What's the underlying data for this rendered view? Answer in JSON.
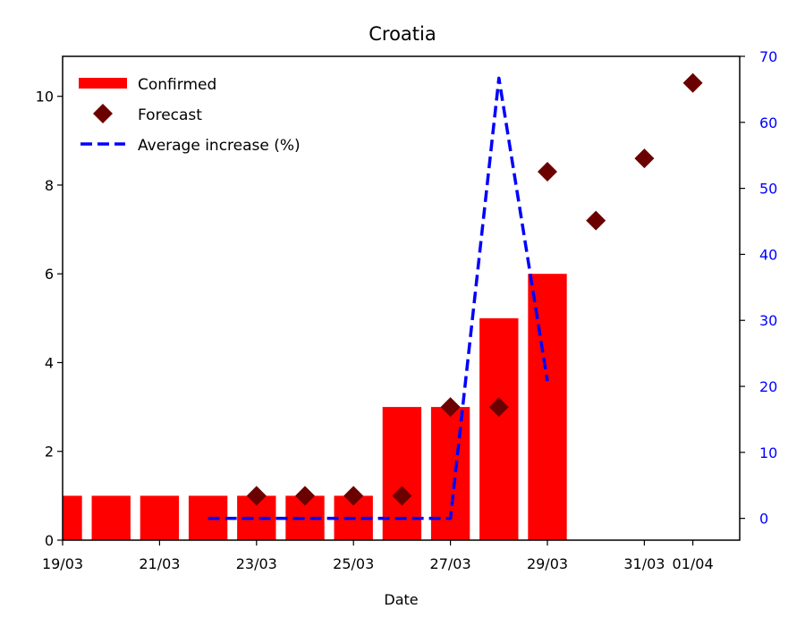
{
  "chart_data": {
    "type": "bar",
    "title": "Croatia",
    "xlabel": "Date",
    "ylabel": "",
    "ylabel_right": "",
    "x_categories": [
      "19/03",
      "20/03",
      "21/03",
      "22/03",
      "23/03",
      "24/03",
      "25/03",
      "26/03",
      "27/03",
      "28/03",
      "29/03",
      "30/03",
      "31/03",
      "01/04"
    ],
    "x_tick_labels": [
      "19/03",
      "21/03",
      "23/03",
      "25/03",
      "27/03",
      "29/03",
      "31/03",
      "01/04"
    ],
    "ylim_left": [
      0,
      10.9
    ],
    "y_ticks_left": [
      "0",
      "2",
      "4",
      "6",
      "8",
      "10"
    ],
    "ylim_right": [
      -3.3,
      70
    ],
    "y_ticks_right": [
      "0",
      "10",
      "20",
      "30",
      "40",
      "50",
      "60",
      "70"
    ],
    "legend_position": "top-left",
    "series": [
      {
        "name": "Confirmed",
        "kind": "bar",
        "color": "#ff0000",
        "axis": "left",
        "points": [
          {
            "x": "19/03",
            "y": 1
          },
          {
            "x": "20/03",
            "y": 1
          },
          {
            "x": "21/03",
            "y": 1
          },
          {
            "x": "22/03",
            "y": 1
          },
          {
            "x": "23/03",
            "y": 1
          },
          {
            "x": "24/03",
            "y": 1
          },
          {
            "x": "25/03",
            "y": 1
          },
          {
            "x": "26/03",
            "y": 3
          },
          {
            "x": "27/03",
            "y": 3
          },
          {
            "x": "28/03",
            "y": 5
          },
          {
            "x": "29/03",
            "y": 6
          }
        ]
      },
      {
        "name": "Forecast",
        "kind": "scatter",
        "marker": "diamond",
        "color": "#6b0000",
        "axis": "left",
        "points": [
          {
            "x": "23/03",
            "y": 1.0
          },
          {
            "x": "24/03",
            "y": 1.0
          },
          {
            "x": "25/03",
            "y": 1.0
          },
          {
            "x": "26/03",
            "y": 1.0
          },
          {
            "x": "27/03",
            "y": 3.0
          },
          {
            "x": "28/03",
            "y": 3.0
          },
          {
            "x": "29/03",
            "y": 8.3
          },
          {
            "x": "30/03",
            "y": 7.2
          },
          {
            "x": "31/03",
            "y": 8.6
          },
          {
            "x": "01/04",
            "y": 10.3
          }
        ]
      },
      {
        "name": "Average increase (%)",
        "kind": "line",
        "style": "dashed",
        "color": "#0000ff",
        "axis": "right",
        "points": [
          {
            "x": "22/03",
            "y": 0
          },
          {
            "x": "23/03",
            "y": 0
          },
          {
            "x": "24/03",
            "y": 0
          },
          {
            "x": "25/03",
            "y": 0
          },
          {
            "x": "26/03",
            "y": 0
          },
          {
            "x": "27/03",
            "y": 0
          },
          {
            "x": "28/03",
            "y": 66.7
          },
          {
            "x": "29/03",
            "y": 20.8
          }
        ]
      }
    ]
  }
}
